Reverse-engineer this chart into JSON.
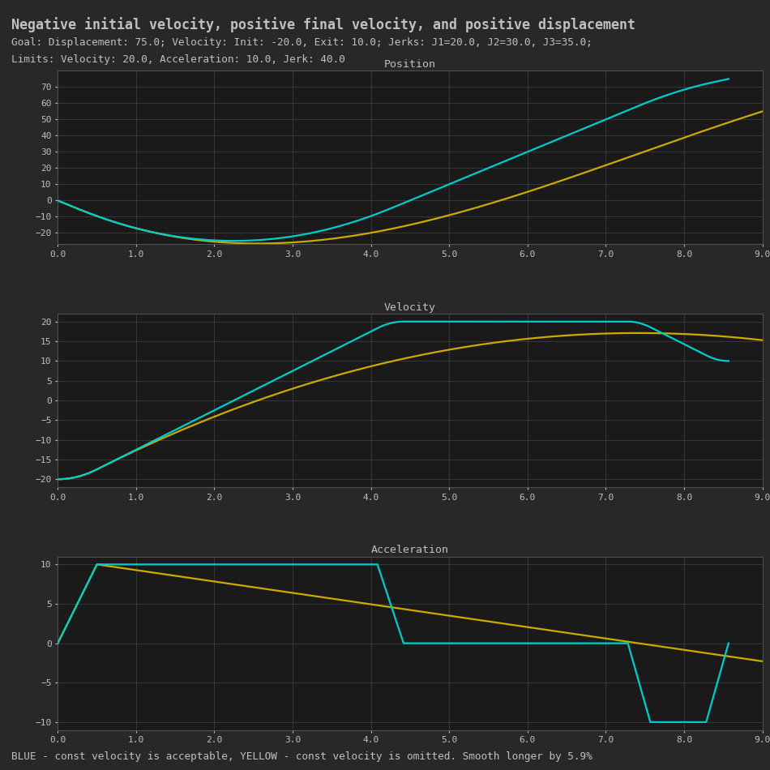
{
  "title": "Negative initial velocity, positive final velocity, and positive displacement",
  "subtitle1": "Goal: Displacement: 75.0; Velocity: Init: -20.0, Exit: 10.0; Jerks: J1=20.0, J2=30.0, J3=35.0;",
  "subtitle2": "Limits: Velocity: 20.0, Acceleration: 10.0, Jerk: 40.0",
  "footer": "BLUE - const velocity is acceptable, YELLOW - const velocity is omitted. Smooth longer by 5.9%",
  "bg_color": "#282828",
  "plot_bg_color": "#1a1a1a",
  "grid_color": "#3c3c3c",
  "text_color": "#c0c0c0",
  "cyan_color": "#00cccc",
  "yellow_color": "#ccaa00",
  "v_init": -20.0,
  "v_exit": 10.0,
  "v_max": 20.0,
  "a_max": 10.0,
  "J1": 20.0,
  "J2": 30.0,
  "J3": 35.0,
  "displacement": 75.0
}
